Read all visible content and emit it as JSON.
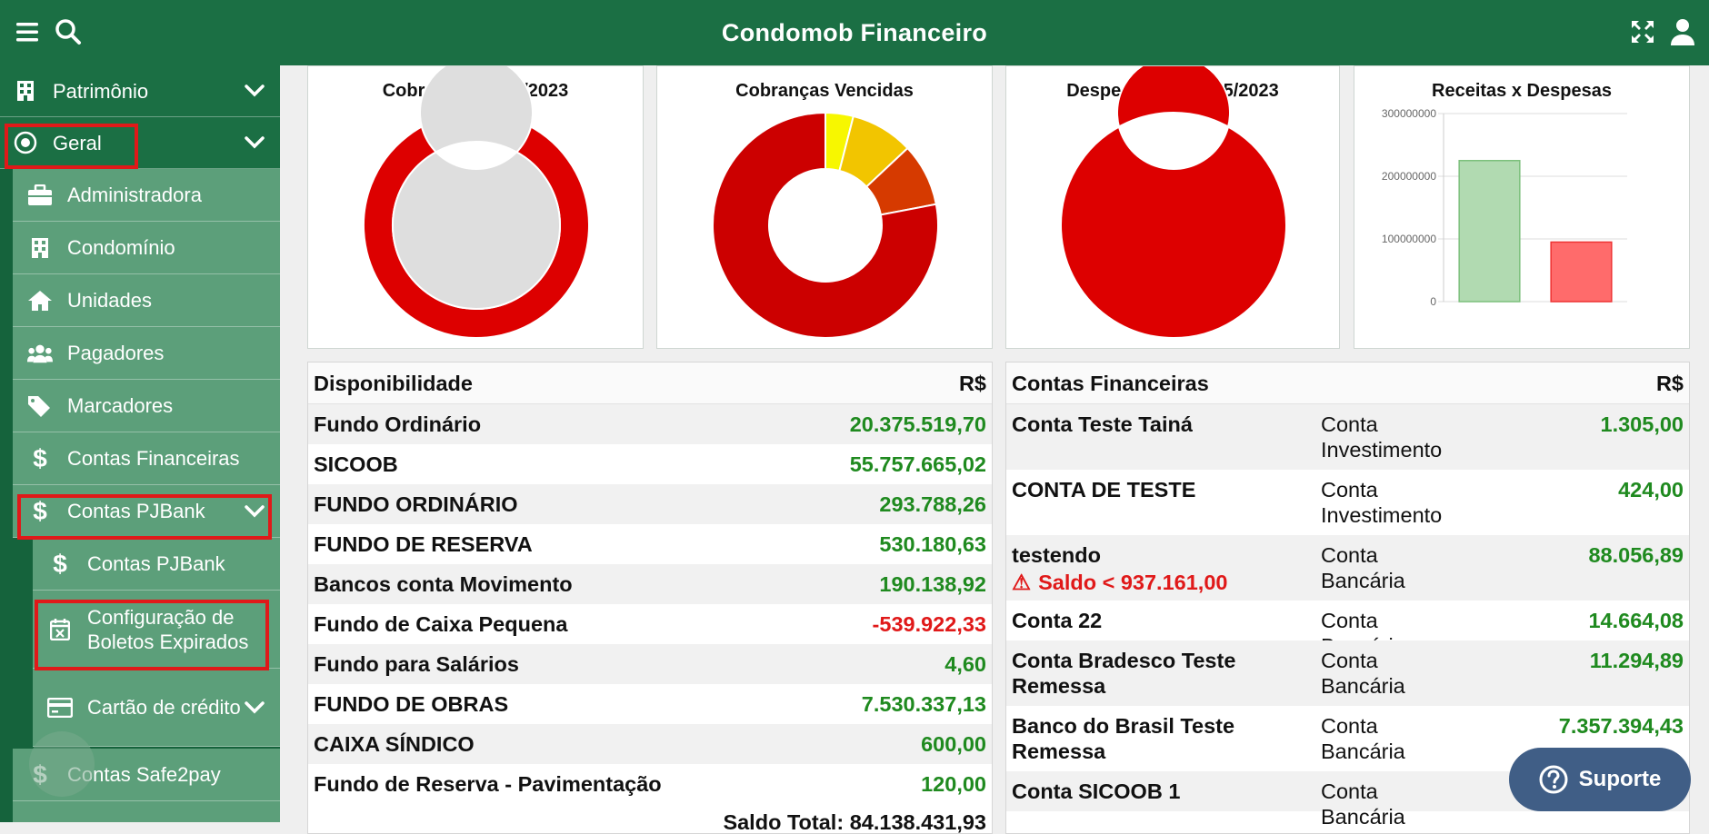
{
  "header": {
    "title": "Condomob Financeiro"
  },
  "sidebar": {
    "items": [
      {
        "label": "Patrimônio"
      },
      {
        "label": "Geral"
      },
      {
        "label": "Administradora"
      },
      {
        "label": "Condomínio"
      },
      {
        "label": "Unidades"
      },
      {
        "label": "Pagadores"
      },
      {
        "label": "Marcadores"
      },
      {
        "label": "Contas Financeiras"
      },
      {
        "label": "Contas PJBank"
      },
      {
        "label": "Contas PJBank"
      },
      {
        "label": "Configuração de Boletos Expirados"
      },
      {
        "label": "Cartão de crédito"
      },
      {
        "label": "Contas Safe2pay"
      }
    ]
  },
  "charts": {
    "c1": {
      "title": "Cobranças Maio/2023"
    },
    "c2": {
      "title": "Cobranças Vencidas"
    },
    "c3": {
      "title": "Despesas até 31/05/2023"
    },
    "c4": {
      "title": "Receitas x Despesas"
    }
  },
  "chart_data": [
    {
      "type": "pie",
      "title": "Cobranças Maio/2023",
      "note_type": "doughnut",
      "series": [
        {
          "values": [
            0.97,
            0.015,
            0.015
          ],
          "colors": [
            "#dd0000",
            "#0a1fd6",
            "#dd0000"
          ]
        },
        {
          "values": [
            1.0
          ],
          "colors": [
            "#dedede"
          ]
        }
      ]
    },
    {
      "type": "pie",
      "title": "Cobranças Vencidas",
      "note_type": "doughnut",
      "values": [
        0.04,
        0.09,
        0.09,
        0.78
      ],
      "colors": [
        "#f7f700",
        "#f2c500",
        "#d63a00",
        "#cc0000"
      ]
    },
    {
      "type": "pie",
      "title": "Despesas até 31/05/2023",
      "note_type": "doughnut",
      "values": [
        1.0
      ],
      "colors": [
        "#dd0000"
      ]
    },
    {
      "type": "bar",
      "title": "Receitas x Despesas",
      "categories": [
        "",
        ""
      ],
      "values": [
        225000000,
        95000000
      ],
      "colors": [
        "#b1dab1",
        "#ff6b6b"
      ],
      "yticks": [
        "300000000",
        "200000000",
        "100000000",
        "0"
      ],
      "ylim": [
        0,
        300000000
      ],
      "grid": true
    }
  ],
  "disponibilidade": {
    "title": "Disponibilidade",
    "currency": "R$",
    "rows": [
      {
        "name": "Fundo Ordinário",
        "value": "20.375.519,70"
      },
      {
        "name": "SICOOB",
        "value": "55.757.665,02"
      },
      {
        "name": "FUNDO ORDINÁRIO",
        "value": "293.788,26"
      },
      {
        "name": "FUNDO DE RESERVA",
        "value": "530.180,63"
      },
      {
        "name": "Bancos conta Movimento",
        "value": "190.138,92"
      },
      {
        "name": "Fundo de Caixa Pequena",
        "value": "-539.922,33"
      },
      {
        "name": "Fundo para Salários",
        "value": "4,60"
      },
      {
        "name": "FUNDO DE OBRAS",
        "value": "7.530.337,13"
      },
      {
        "name": "CAIXA SÍNDICO",
        "value": "600,00"
      },
      {
        "name": "Fundo de Reserva - Pavimentação",
        "value": "120,00"
      }
    ],
    "total_label": "Saldo Total:",
    "total_value": "84.138.431,93"
  },
  "contas": {
    "title": "Contas Financeiras",
    "currency": "R$",
    "rows": [
      {
        "name": "Conta Teste Tainá",
        "type": "Conta Investimento",
        "value": "1.305,00"
      },
      {
        "name": "CONTA DE TESTE",
        "type": "Conta Investimento",
        "value": "424,00"
      },
      {
        "name": "testendo",
        "type": "Conta Bancária",
        "value": "88.056,89",
        "warning": "Saldo < 937.161,00"
      },
      {
        "name": "Conta 22",
        "type": "Conta Bancária",
        "value": "14.664,08"
      },
      {
        "name": "Conta Bradesco Teste Remessa",
        "type": "Conta Bancária",
        "value": "11.294,89"
      },
      {
        "name": "Banco do Brasil Teste Remessa",
        "type": "Conta Bancária",
        "value": "7.357.394,43"
      },
      {
        "name": "Conta SICOOB 1",
        "type": "Conta Bancária",
        "value": ""
      }
    ]
  },
  "support": {
    "label": "Suporte"
  },
  "colors": {
    "header": "#1b6f44",
    "sidebar": "#15633c",
    "submenu": "#5c9f7a",
    "positive": "#1f8a1f",
    "negative": "#e01919",
    "support": "#405e86"
  }
}
